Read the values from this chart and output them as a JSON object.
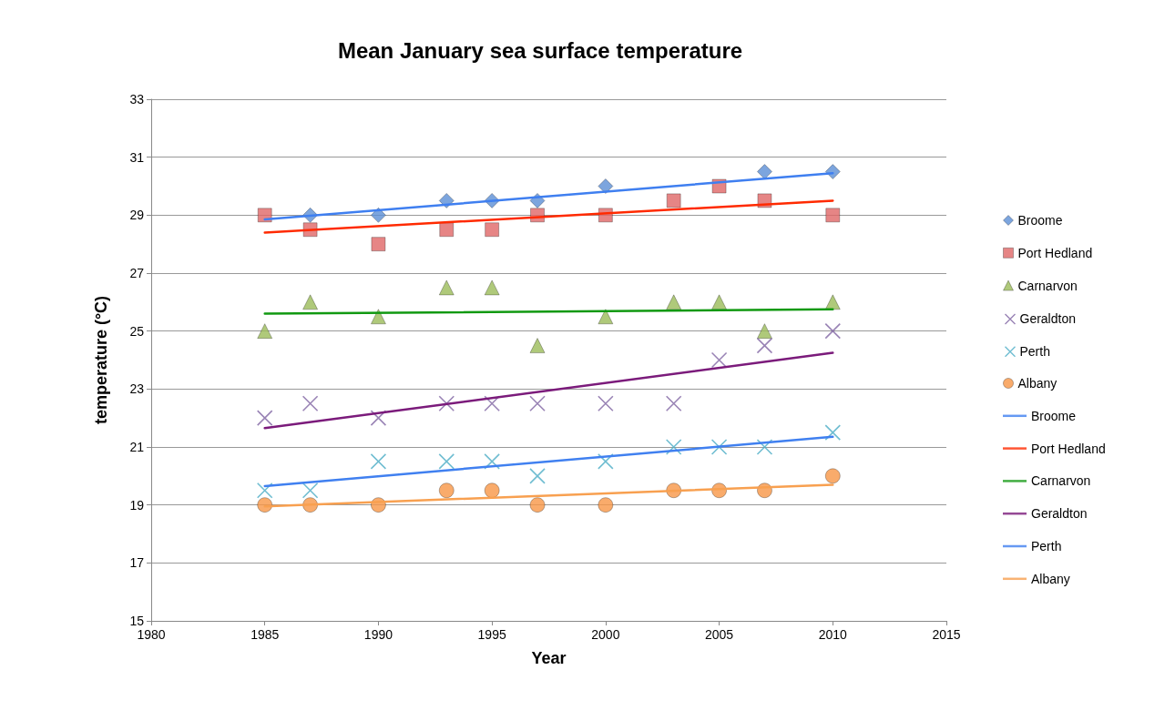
{
  "chart_data": {
    "type": "scatter",
    "title": "Mean January sea surface temperature",
    "xlabel": "Year",
    "ylabel": "temperature (°C)",
    "x": [
      1985,
      1987,
      1990,
      1993,
      1995,
      1997,
      2000,
      2003,
      2005,
      2007,
      2010
    ],
    "xlim": [
      1980,
      2015
    ],
    "xticks": [
      1980,
      1985,
      1990,
      1995,
      2000,
      2005,
      2010,
      2015
    ],
    "ylim": [
      15,
      33
    ],
    "yticks": [
      15,
      17,
      19,
      21,
      23,
      25,
      27,
      29,
      31,
      33
    ],
    "grid": "y",
    "legend": "right",
    "series": [
      {
        "name": "Broome",
        "color": "#5b8fd6",
        "marker": "diamond",
        "values": [
          null,
          29,
          29,
          29.5,
          29.5,
          29.5,
          30,
          null,
          null,
          30.5,
          30.5
        ]
      },
      {
        "name": "Port Hedland",
        "color": "#e06666",
        "marker": "square",
        "values": [
          29,
          28.5,
          28,
          28.5,
          28.5,
          29,
          29,
          29.5,
          30,
          29.5,
          29
        ]
      },
      {
        "name": "Carnarvon",
        "color": "#9bbb59",
        "marker": "triangle",
        "values": [
          25,
          26,
          25.5,
          26.5,
          26.5,
          24.5,
          25.5,
          26,
          26,
          25,
          26
        ]
      },
      {
        "name": "Geraldton",
        "color": "#8064a2",
        "marker": "cross",
        "values": [
          22,
          22.5,
          22,
          22.5,
          22.5,
          22.5,
          22.5,
          22.5,
          24,
          24.5,
          25
        ]
      },
      {
        "name": "Perth",
        "color": "#4bacc6",
        "marker": "cross",
        "values": [
          19.5,
          19.5,
          20.5,
          20.5,
          20.5,
          20,
          20.5,
          21,
          21,
          21,
          21.5
        ]
      },
      {
        "name": "Albany",
        "color": "#f79646",
        "marker": "circle",
        "values": [
          19,
          19,
          19,
          19.5,
          19.5,
          19,
          19,
          19.5,
          19.5,
          19.5,
          20
        ]
      },
      {
        "name": "Broome",
        "type": "line",
        "color": "#3f7ff0",
        "marker": "none",
        "values": [
          28.85,
          null,
          null,
          null,
          null,
          null,
          null,
          null,
          null,
          null,
          30.45
        ]
      },
      {
        "name": "Port Hedland",
        "type": "line",
        "color": "#ff2a00",
        "marker": "none",
        "values": [
          28.4,
          null,
          null,
          null,
          null,
          null,
          null,
          null,
          null,
          null,
          29.5
        ]
      },
      {
        "name": "Carnarvon",
        "type": "line",
        "color": "#119911",
        "marker": "none",
        "values": [
          25.6,
          null,
          null,
          null,
          null,
          null,
          null,
          null,
          null,
          null,
          25.75
        ]
      },
      {
        "name": "Geraldton",
        "type": "line",
        "color": "#7b1b7b",
        "marker": "none",
        "values": [
          21.65,
          null,
          null,
          null,
          null,
          null,
          null,
          null,
          null,
          null,
          24.25
        ]
      },
      {
        "name": "Perth",
        "type": "line",
        "color": "#4080f0",
        "marker": "none",
        "values": [
          19.65,
          null,
          null,
          null,
          null,
          null,
          null,
          null,
          null,
          null,
          21.35
        ]
      },
      {
        "name": "Albany",
        "type": "line",
        "color": "#f8a050",
        "marker": "none",
        "values": [
          18.95,
          null,
          null,
          null,
          null,
          null,
          null,
          null,
          null,
          null,
          19.7
        ]
      }
    ]
  }
}
